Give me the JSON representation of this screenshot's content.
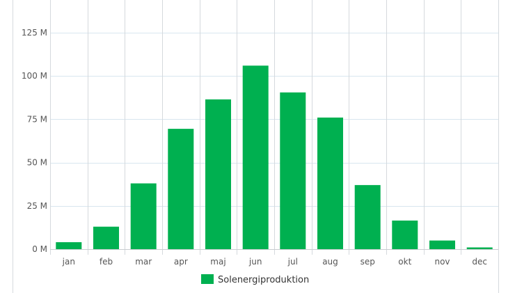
{
  "chart_data": {
    "type": "bar",
    "categories": [
      "jan",
      "feb",
      "mar",
      "apr",
      "maj",
      "jun",
      "jul",
      "aug",
      "sep",
      "okt",
      "nov",
      "dec"
    ],
    "series": [
      {
        "name": "Solenergiproduktion",
        "values": [
          4,
          13,
          38,
          69.5,
          86.5,
          106,
          90.5,
          76,
          37,
          16.5,
          5,
          1
        ],
        "color": "#00b050"
      }
    ],
    "yticks": [
      0,
      25,
      50,
      75,
      100,
      125
    ],
    "ytick_labels": [
      "0 M",
      "25 M",
      "50 M",
      "75 M",
      "100 M",
      "125 M"
    ],
    "ylim": [
      0,
      140
    ],
    "grid": true,
    "legend_position": "bottom-center",
    "title": "",
    "xlabel": "",
    "ylabel": ""
  }
}
